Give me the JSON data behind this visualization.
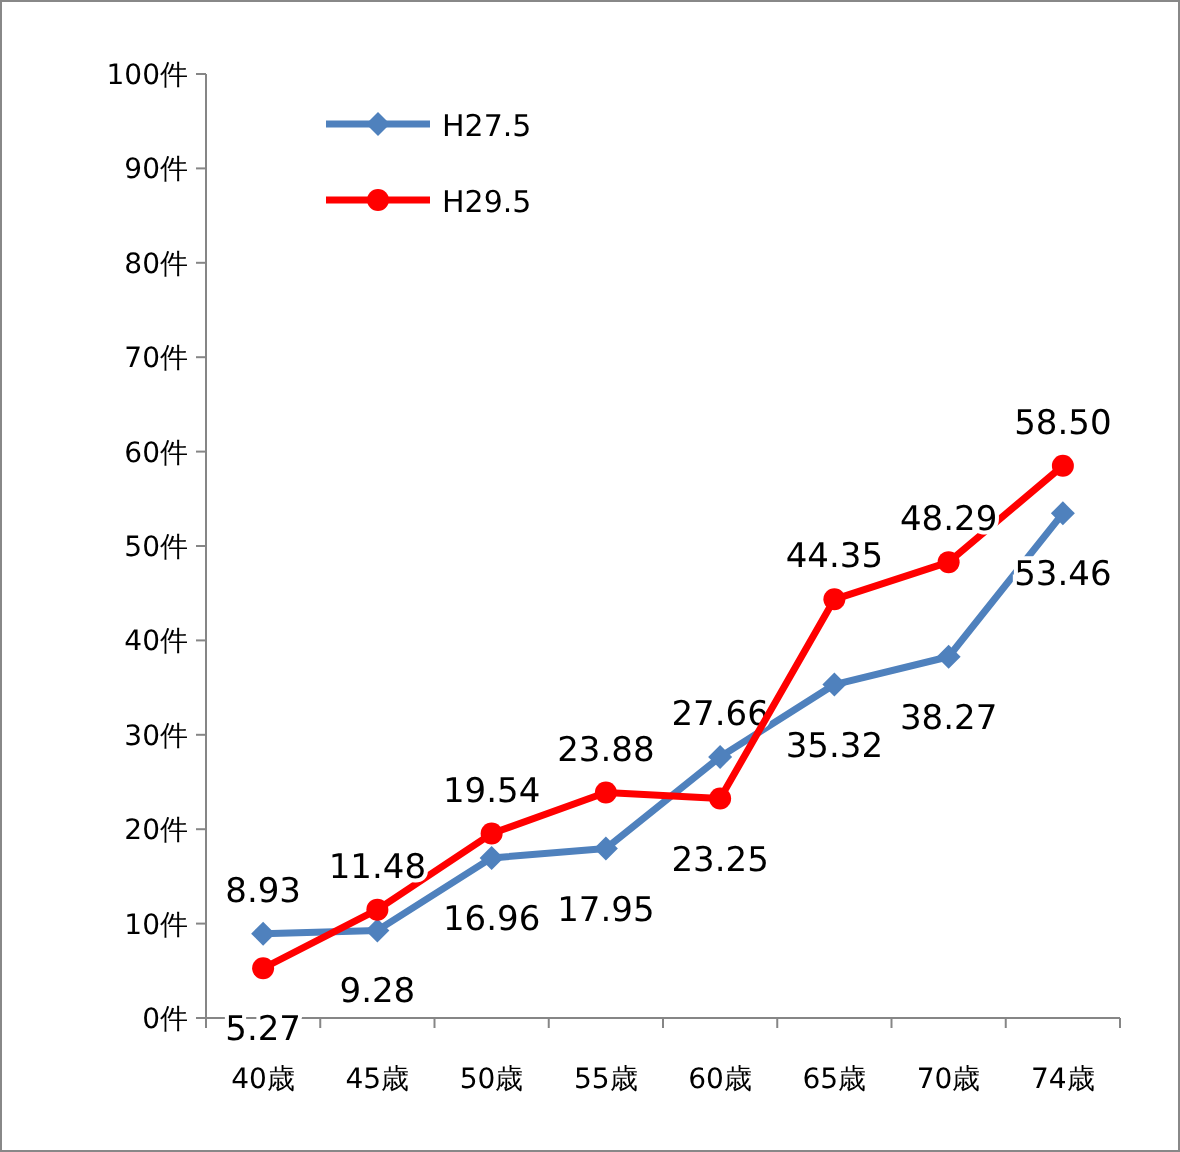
{
  "chart_data": {
    "type": "line",
    "categories": [
      "40歳",
      "45歳",
      "50歳",
      "55歳",
      "60歳",
      "65歳",
      "70歳",
      "74歳"
    ],
    "series": [
      {
        "name": "H27.5",
        "color": "#4f81bd",
        "marker": "diamond",
        "values": [
          8.93,
          9.28,
          16.96,
          17.95,
          27.66,
          35.32,
          38.27,
          53.46
        ],
        "value_labels": [
          "8.93",
          "9.28",
          "16.96",
          "17.95",
          "27.66",
          "35.32",
          "38.27",
          "53.46"
        ]
      },
      {
        "name": "H29.5",
        "color": "#ff0000",
        "marker": "circle",
        "values": [
          5.27,
          11.48,
          19.54,
          23.88,
          23.25,
          44.35,
          48.29,
          58.5
        ],
        "value_labels": [
          "5.27",
          "11.48",
          "19.54",
          "23.88",
          "23.25",
          "44.35",
          "48.29",
          "58.50"
        ]
      }
    ],
    "ylim": [
      0,
      100
    ],
    "yticks": [
      {
        "value": 0,
        "label": "0件"
      },
      {
        "value": 10,
        "label": "10件"
      },
      {
        "value": 20,
        "label": "20件"
      },
      {
        "value": 30,
        "label": "30件"
      },
      {
        "value": 40,
        "label": "40件"
      },
      {
        "value": 50,
        "label": "50件"
      },
      {
        "value": 60,
        "label": "60件"
      },
      {
        "value": 70,
        "label": "70件"
      },
      {
        "value": 80,
        "label": "80件"
      },
      {
        "value": 90,
        "label": "90件"
      },
      {
        "value": 100,
        "label": "100件"
      }
    ],
    "legend": "top left"
  }
}
